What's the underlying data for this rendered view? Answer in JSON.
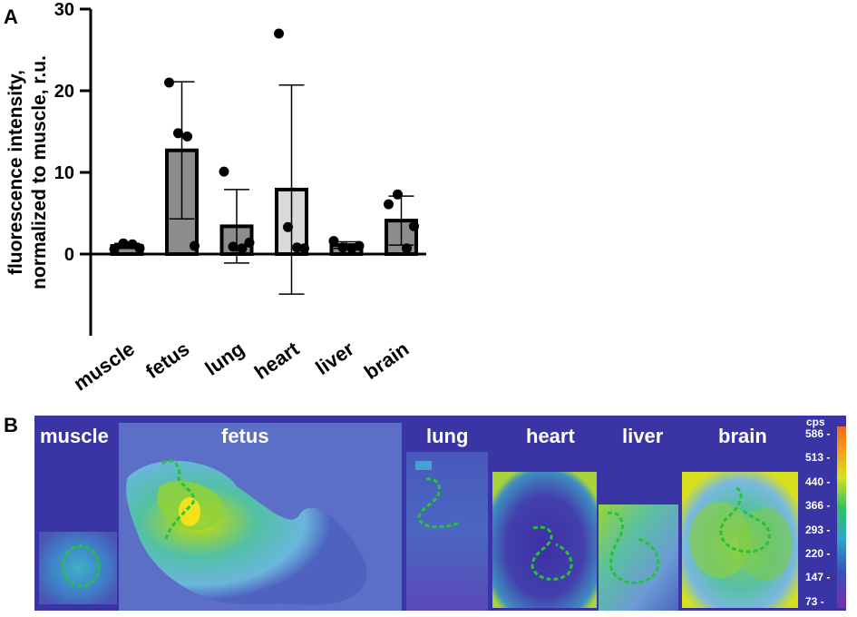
{
  "panel_a_label": "A",
  "panel_b_label": "B",
  "chart_data": {
    "type": "bar",
    "title": "",
    "ylabel": "fluorescence intensity, normalized to muscle, r.u.",
    "ylabel_lines": [
      "fluorescence intensity,",
      "normalized to muscle, r.u."
    ],
    "ylim": [
      -10,
      30
    ],
    "yticks": [
      0,
      10,
      20,
      30
    ],
    "categories": [
      "muscle",
      "fetus",
      "lung",
      "heart",
      "liver",
      "brain"
    ],
    "values": [
      1.0,
      12.7,
      3.4,
      7.9,
      1.1,
      4.1
    ],
    "error": [
      0.3,
      8.4,
      4.5,
      12.8,
      0.4,
      3.0
    ],
    "bar_colors": [
      "#8c8c8c",
      "#8c8c8c",
      "#8c8c8c",
      "#d9d9d9",
      "#8c8c8c",
      "#8c8c8c"
    ],
    "points": [
      [
        0.6,
        1.3,
        1.2,
        0.7
      ],
      [
        21.0,
        14.8,
        14.4,
        1.0
      ],
      [
        10.1,
        0.9,
        0.7,
        1.4
      ],
      [
        27.0,
        3.3,
        0.8,
        0.7
      ],
      [
        1.6,
        0.8,
        0.7,
        1.0
      ],
      [
        6.1,
        7.3,
        0.7,
        3.4
      ]
    ],
    "grid": false,
    "legend": "none"
  },
  "imaging": {
    "tissues": [
      "muscle",
      "fetus",
      "lung",
      "heart",
      "liver",
      "brain"
    ],
    "colorbar": {
      "unit": "cps",
      "ticks": [
        "586",
        "513",
        "440",
        "366",
        "293",
        "220",
        "147",
        "73"
      ]
    }
  }
}
